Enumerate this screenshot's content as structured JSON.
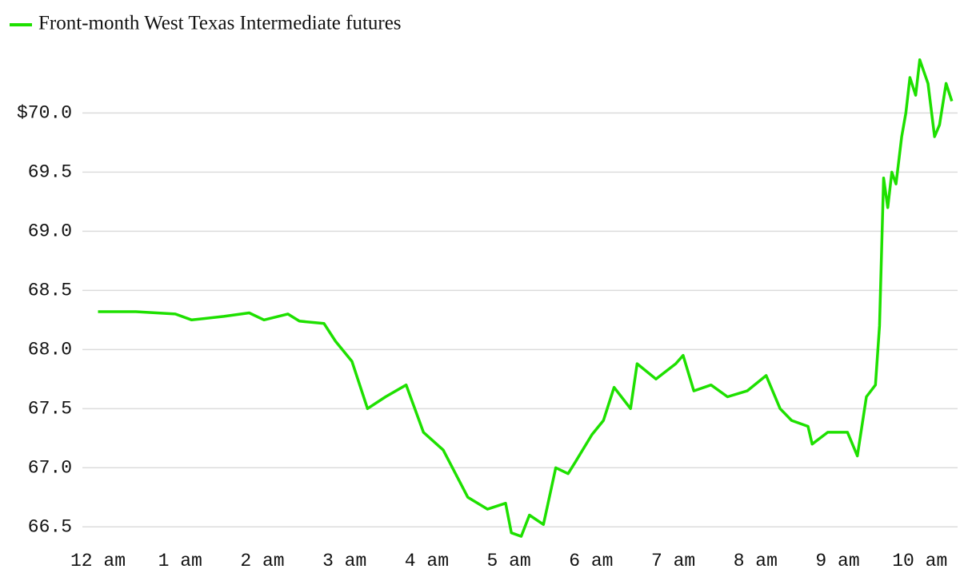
{
  "chart_data": {
    "type": "line",
    "series": [
      {
        "name": "Front-month West Texas Intermediate futures",
        "color": "#1ee000",
        "x": [
          0,
          0.46,
          0.94,
          1.14,
          1.53,
          1.84,
          2.02,
          2.31,
          2.45,
          2.75,
          2.89,
          3.09,
          3.28,
          3.5,
          3.75,
          3.96,
          4.2,
          4.5,
          4.74,
          4.96,
          5.03,
          5.15,
          5.25,
          5.42,
          5.57,
          5.72,
          5.81,
          6.01,
          6.15,
          6.28,
          6.48,
          6.56,
          6.79,
          7.03,
          7.12,
          7.25,
          7.46,
          7.66,
          7.9,
          8.13,
          8.3,
          8.44,
          8.64,
          8.69,
          8.88,
          9.12,
          9.24,
          9.35,
          9.46,
          9.51,
          9.56,
          9.61,
          9.66,
          9.71,
          9.78,
          9.83,
          9.88,
          9.95,
          10.0,
          10.1,
          10.18,
          10.24,
          10.32,
          10.39
        ],
        "values": [
          68.32,
          68.32,
          68.3,
          68.25,
          68.28,
          68.31,
          68.25,
          68.3,
          68.24,
          68.22,
          68.07,
          67.9,
          67.5,
          67.6,
          67.7,
          67.3,
          67.15,
          66.75,
          66.65,
          66.7,
          66.45,
          66.42,
          66.6,
          66.52,
          67.0,
          66.95,
          67.05,
          67.28,
          67.4,
          67.68,
          67.5,
          67.88,
          67.75,
          67.88,
          67.95,
          67.65,
          67.7,
          67.6,
          67.65,
          67.78,
          67.5,
          67.4,
          67.35,
          67.2,
          67.3,
          67.3,
          67.1,
          67.6,
          67.7,
          68.2,
          69.45,
          69.2,
          69.5,
          69.4,
          69.8,
          70.0,
          70.3,
          70.15,
          70.45,
          70.25,
          69.8,
          69.9,
          70.25,
          70.1
        ]
      }
    ],
    "xlim": [
      -0.19,
      10.46
    ],
    "xticks": [
      {
        "value": 0,
        "label": "12 am"
      },
      {
        "value": 1,
        "label": "1 am"
      },
      {
        "value": 2,
        "label": "2 am"
      },
      {
        "value": 3,
        "label": "3 am"
      },
      {
        "value": 4,
        "label": "4 am"
      },
      {
        "value": 5,
        "label": "5 am"
      },
      {
        "value": 6,
        "label": "6 am"
      },
      {
        "value": 7,
        "label": "7 am"
      },
      {
        "value": 8,
        "label": "8 am"
      },
      {
        "value": 9,
        "label": "9 am"
      },
      {
        "value": 10,
        "label": "10 am"
      }
    ],
    "ylim": [
      66.36,
      70.55
    ],
    "yticks": [
      {
        "value": 66.5,
        "label": "66.5"
      },
      {
        "value": 67,
        "label": "67.0"
      },
      67.5,
      {
        "value": 68,
        "label": "68.0"
      },
      68.5,
      {
        "value": 69,
        "label": "69.0"
      },
      69.5,
      {
        "value": 70,
        "label": "$70.0"
      }
    ],
    "grid": true
  }
}
